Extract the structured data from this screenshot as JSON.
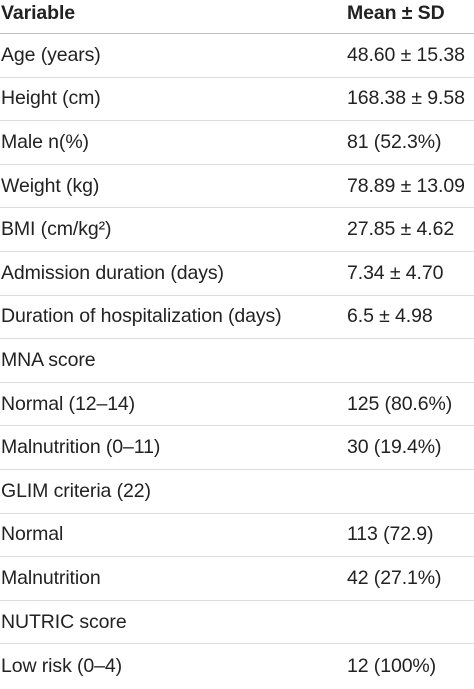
{
  "table": {
    "headers": [
      "Variable",
      "Mean ± SD"
    ],
    "rows": [
      [
        "Age (years)",
        "48.60 ± 15.38"
      ],
      [
        "Height (cm)",
        "168.38 ± 9.58"
      ],
      [
        "Male n(%)",
        "81 (52.3%)"
      ],
      [
        "Weight (kg)",
        "78.89 ± 13.09"
      ],
      [
        "BMI (cm/kg²)",
        "27.85 ± 4.62"
      ],
      [
        "Admission duration (days)",
        "7.34 ± 4.70"
      ],
      [
        "Duration of hospitalization (days)",
        "6.5 ± 4.98"
      ],
      [
        "MNA score",
        ""
      ],
      [
        "Normal (12–14)",
        "125 (80.6%)"
      ],
      [
        "Malnutrition (0–11)",
        "30 (19.4%)"
      ],
      [
        "GLIM criteria (22)",
        ""
      ],
      [
        "Normal",
        "113 (72.9)"
      ],
      [
        "Malnutrition",
        "42 (27.1%)"
      ],
      [
        "NUTRIC score",
        ""
      ],
      [
        "Low risk (0–4)",
        "12 (100%)"
      ]
    ]
  }
}
